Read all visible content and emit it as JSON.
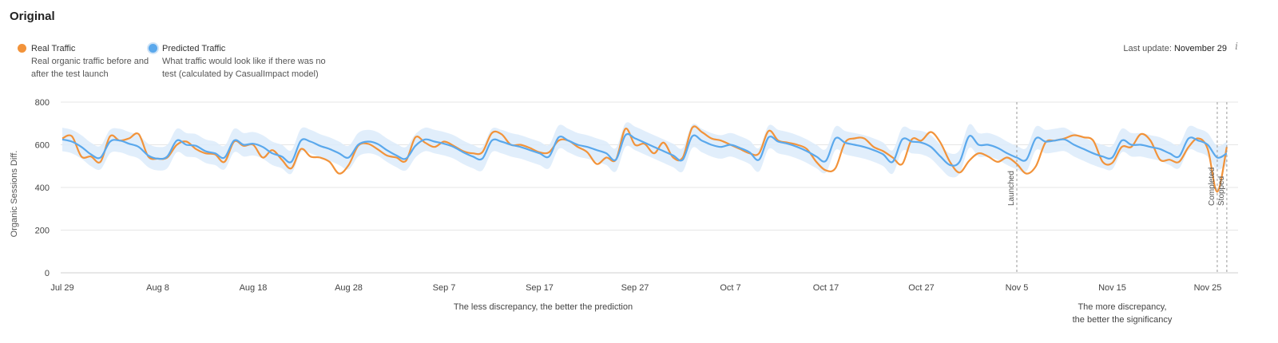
{
  "page": {
    "title": "Original"
  },
  "legend": {
    "real": {
      "label": "Real Traffic",
      "desc": "Real organic traffic before and after the test launch"
    },
    "predicted": {
      "label": "Predicted Traffic",
      "desc": "What traffic would look like if there was no test (calculated by CasualImpact model)"
    }
  },
  "last_update": {
    "label": "Last update:",
    "value": "November 29"
  },
  "notes": {
    "left": "The less discrepancy, the better the prediction",
    "right_line1": "The more discrepancy,",
    "right_line2": "the better the significancy"
  },
  "colors": {
    "real": "#f2933a",
    "predicted": "#5aa8ec",
    "band": "#dcebfa",
    "grid": "#e6e6e6",
    "marker": "#9a9a9a"
  },
  "icons": {
    "info": "info-icon"
  },
  "chart_data": {
    "type": "line",
    "ylabel": "Organic Sessions Diff.",
    "xlabel": "",
    "ylim": [
      0,
      800
    ],
    "y_ticks": [
      0,
      200,
      400,
      600,
      800
    ],
    "x_ticks": [
      "Jul 29",
      "Aug 8",
      "Aug 18",
      "Aug 28",
      "Sep 7",
      "Sep 17",
      "Sep 27",
      "Oct 7",
      "Oct 17",
      "Oct 27",
      "Nov 5",
      "Nov 15",
      "Nov 25"
    ],
    "x_tick_day_index": [
      0,
      10,
      20,
      30,
      40,
      50,
      60,
      70,
      80,
      90,
      100,
      110,
      120
    ],
    "grid": true,
    "markers": [
      {
        "label": "Launched",
        "day_index": 100
      },
      {
        "label": "Completed",
        "day_index": 121
      },
      {
        "label": "Stopped",
        "day_index": 122
      }
    ],
    "series": [
      {
        "name": "Real Traffic",
        "values": [
          630,
          640,
          545,
          545,
          520,
          640,
          620,
          630,
          650,
          545,
          535,
          540,
          600,
          615,
          580,
          560,
          555,
          520,
          615,
          595,
          600,
          540,
          575,
          530,
          490,
          580,
          545,
          540,
          520,
          465,
          505,
          595,
          605,
          580,
          550,
          540,
          525,
          635,
          610,
          590,
          615,
          595,
          570,
          560,
          565,
          655,
          650,
          600,
          600,
          585,
          565,
          565,
          620,
          620,
          590,
          565,
          510,
          540,
          530,
          675,
          600,
          605,
          560,
          610,
          540,
          540,
          680,
          660,
          630,
          620,
          600,
          580,
          560,
          560,
          665,
          620,
          610,
          600,
          580,
          520,
          480,
          490,
          610,
          630,
          630,
          590,
          570,
          540,
          510,
          625,
          620,
          660,
          610,
          520,
          470,
          525,
          560,
          545,
          520,
          540,
          510,
          465,
          500,
          610,
          620,
          630,
          645,
          635,
          620,
          520,
          515,
          590,
          590,
          650,
          620,
          530,
          530,
          520,
          590,
          630,
          580,
          380,
          590
        ]
      },
      {
        "name": "Predicted Traffic",
        "values": [
          625,
          615,
          590,
          555,
          540,
          615,
          620,
          605,
          590,
          550,
          535,
          545,
          620,
          600,
          595,
          570,
          560,
          540,
          620,
          600,
          605,
          590,
          560,
          545,
          520,
          620,
          615,
          595,
          580,
          560,
          540,
          600,
          615,
          605,
          575,
          550,
          535,
          595,
          625,
          615,
          605,
          590,
          565,
          545,
          535,
          620,
          615,
          600,
          590,
          575,
          560,
          545,
          635,
          620,
          600,
          590,
          575,
          560,
          530,
          645,
          630,
          610,
          590,
          570,
          550,
          530,
          640,
          620,
          600,
          590,
          600,
          585,
          565,
          530,
          635,
          615,
          605,
          590,
          570,
          545,
          525,
          630,
          610,
          600,
          590,
          575,
          555,
          520,
          625,
          615,
          610,
          590,
          545,
          505,
          520,
          640,
          600,
          600,
          585,
          560,
          540,
          530,
          630,
          615,
          620,
          625,
          600,
          580,
          560,
          545,
          540,
          620,
          600,
          600,
          590,
          580,
          560,
          545,
          630,
          620,
          600,
          540,
          560
        ]
      }
    ],
    "band_width": 55
  }
}
